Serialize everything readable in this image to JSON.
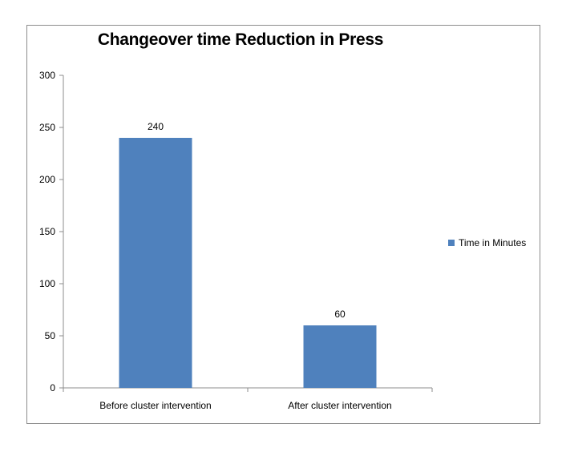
{
  "chart_data": {
    "type": "bar",
    "title": "Changeover time Reduction  in Press",
    "categories": [
      "Before cluster intervention",
      "After cluster intervention"
    ],
    "series": [
      {
        "name": "Time in Minutes",
        "values": [
          240,
          60
        ],
        "color": "#4f81bd"
      }
    ],
    "data_labels": [
      "240",
      "60"
    ],
    "ylim": [
      0,
      300
    ],
    "yticks": [
      0,
      50,
      100,
      150,
      200,
      250,
      300
    ],
    "xlabel": "",
    "ylabel": "",
    "grid": false,
    "legend_position": "right"
  }
}
